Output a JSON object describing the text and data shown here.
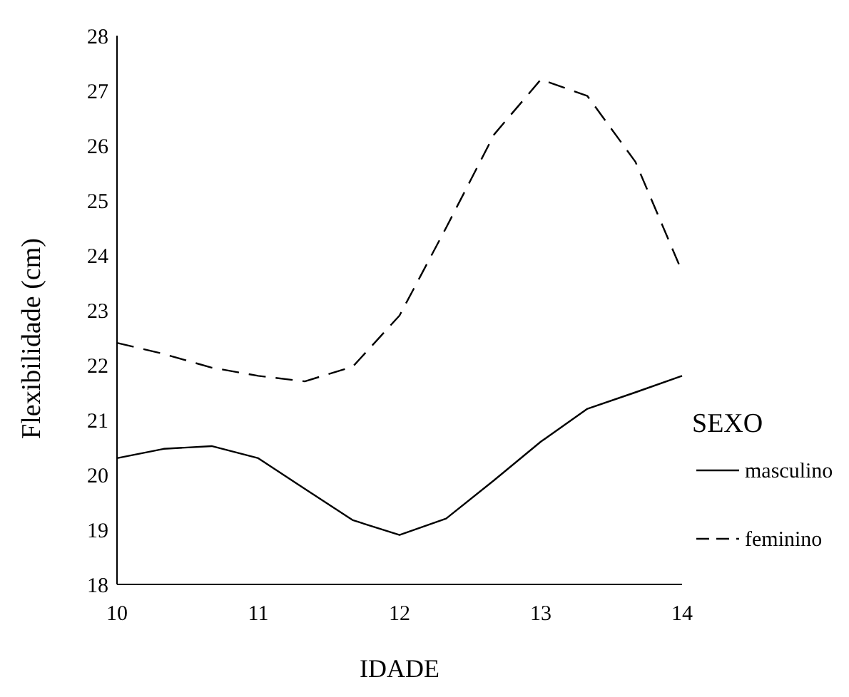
{
  "chart_data": {
    "type": "line",
    "xlabel": "IDADE",
    "ylabel": "Flexibilidade (cm)",
    "legend_title": "SEXO",
    "legend": "right",
    "x": [
      10,
      10.33,
      10.67,
      11,
      11.33,
      11.67,
      12,
      12.33,
      12.67,
      13,
      13.33,
      13.67,
      14
    ],
    "xlim": [
      10,
      14
    ],
    "xticks": [
      10,
      11,
      12,
      13,
      14
    ],
    "ylim": [
      18,
      28
    ],
    "yticks": [
      18,
      19,
      20,
      21,
      22,
      23,
      24,
      25,
      26,
      27,
      28
    ],
    "series": [
      {
        "name": "masculino",
        "color": "#000000",
        "line_style": "solid",
        "values": [
          20.3,
          20.47,
          20.52,
          20.3,
          19.74,
          19.17,
          18.9,
          19.2,
          19.9,
          20.6,
          21.2,
          21.5,
          21.8
        ]
      },
      {
        "name": "feminino",
        "color": "#000000",
        "line_style": "dashed",
        "values": [
          22.4,
          22.2,
          21.95,
          21.8,
          21.7,
          21.97,
          22.9,
          24.5,
          26.2,
          27.2,
          26.9,
          25.7,
          23.7
        ]
      }
    ]
  }
}
